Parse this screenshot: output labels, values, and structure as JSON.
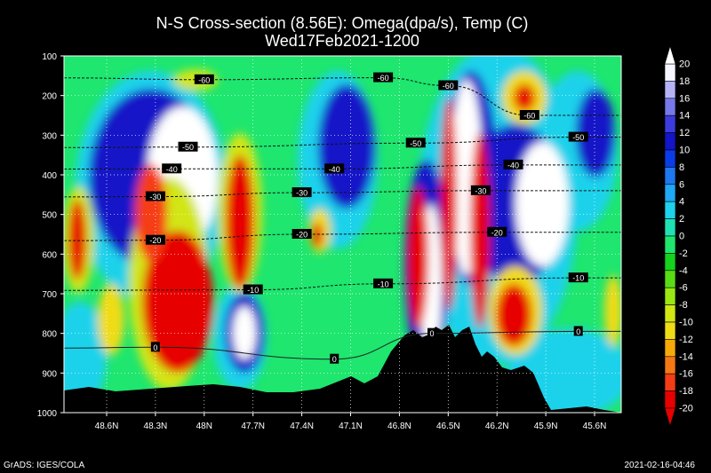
{
  "chart_data": {
    "type": "heatmap",
    "title": "N-S Cross-section (8.56E): Omega(dpa/s), Temp (C)",
    "subtitle": "Wed17Feb2021-1200",
    "xlabel": "",
    "ylabel": "",
    "x_ticks": [
      "48.6N",
      "48.3N",
      "48N",
      "47.7N",
      "47.4N",
      "47.1N",
      "46.8N",
      "46.5N",
      "46.2N",
      "45.9N",
      "45.6N"
    ],
    "y_ticks": [
      "100",
      "200",
      "300",
      "400",
      "500",
      "600",
      "700",
      "800",
      "900",
      "1000"
    ],
    "ylim": [
      1000,
      100
    ],
    "colorbar": {
      "labels": [
        "20",
        "18",
        "16",
        "14",
        "12",
        "10",
        "8",
        "6",
        "4",
        "2",
        "0",
        "-2",
        "-4",
        "-6",
        "-8",
        "-10",
        "-12",
        "-14",
        "-16",
        "-18",
        "-20"
      ],
      "colors": [
        "#f5f5ff",
        "#b4b4f5",
        "#7878ea",
        "#3c3cde",
        "#1414c8",
        "#0a3ce8",
        "#1e78f0",
        "#1ea8f5",
        "#1ed2eb",
        "#1ee1b4",
        "#1ee66e",
        "#14d21e",
        "#5adc14",
        "#9be614",
        "#d2e614",
        "#f0dc14",
        "#f5aa0a",
        "#f57814",
        "#f53c14",
        "#e60000"
      ]
    },
    "series": [
      {
        "name": "-60",
        "values": [
          {
            "lat": "48.0N",
            "p": 160
          },
          {
            "lat": "46.9N",
            "p": 155
          },
          {
            "lat": "46.5N",
            "p": 175
          },
          {
            "lat": "46.0N",
            "p": 250
          }
        ]
      },
      {
        "name": "-50",
        "values": [
          {
            "lat": "48.1N",
            "p": 330
          },
          {
            "lat": "46.7N",
            "p": 320
          },
          {
            "lat": "45.7N",
            "p": 305
          }
        ]
      },
      {
        "name": "-40",
        "values": [
          {
            "lat": "48.2N",
            "p": 385
          },
          {
            "lat": "47.2N",
            "p": 385
          },
          {
            "lat": "46.1N",
            "p": 375
          }
        ]
      },
      {
        "name": "-30",
        "values": [
          {
            "lat": "48.3N",
            "p": 455
          },
          {
            "lat": "47.4N",
            "p": 445
          },
          {
            "lat": "46.3N",
            "p": 440
          }
        ]
      },
      {
        "name": "-20",
        "values": [
          {
            "lat": "48.3N",
            "p": 565
          },
          {
            "lat": "47.4N",
            "p": 550
          },
          {
            "lat": "46.2N",
            "p": 545
          }
        ]
      },
      {
        "name": "-10",
        "values": [
          {
            "lat": "47.7N",
            "p": 690
          },
          {
            "lat": "46.9N",
            "p": 675
          },
          {
            "lat": "45.7N",
            "p": 660
          }
        ]
      },
      {
        "name": "0",
        "values": [
          {
            "lat": "48.3N",
            "p": 835
          },
          {
            "lat": "47.2N",
            "p": 865
          },
          {
            "lat": "46.6N",
            "p": 800
          },
          {
            "lat": "45.7N",
            "p": 795
          }
        ]
      }
    ]
  },
  "footer": {
    "left": "GrADS: IGES/COLA",
    "right": "2021-02-16-04:46"
  }
}
